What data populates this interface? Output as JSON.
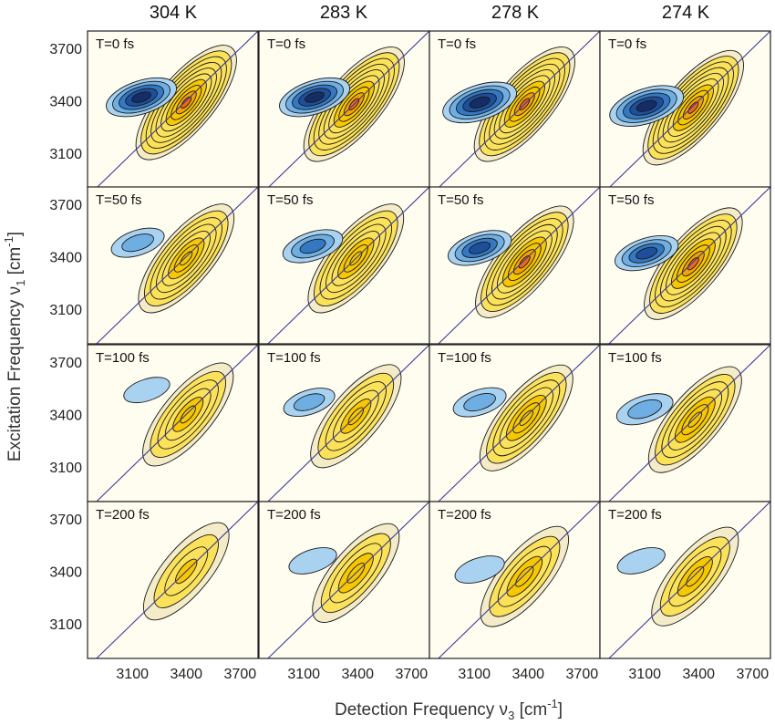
{
  "chart_data": {
    "type": "heatmap",
    "title": "",
    "xlabel": "Detection Frequency ν₃ [cm⁻¹]",
    "xlabel_main": "Detection Frequency ν",
    "xlabel_sub": "3",
    "xlabel_unit": " [cm",
    "xlabel_exp": "-1",
    "xlabel_end": "]",
    "ylabel": "Excitation Frequency ν₁ [cm⁻¹]",
    "ylabel_main": "Excitation Frequency ν",
    "ylabel_sub": "1",
    "ylabel_unit": " [cm",
    "ylabel_exp": "-1",
    "ylabel_end": "]",
    "columns": [
      "304 K",
      "283 K",
      "278 K",
      "274 K"
    ],
    "rows": [
      "T=0 fs",
      "T=50 fs",
      "T=100 fs",
      "T=200 fs"
    ],
    "xlim": [
      2850,
      3800
    ],
    "ylim": [
      2900,
      3800
    ],
    "x_ticks": [
      3100,
      3400,
      3700
    ],
    "x_tick_labels": [
      "3100",
      "3400",
      "3700"
    ],
    "y_ticks": [
      3100,
      3400,
      3700
    ],
    "y_tick_labels": [
      "3100",
      "3400",
      "3700"
    ],
    "diagonal": "x = y",
    "peak_estimates": [
      [
        {
          "pos": [
            3400,
            3390
          ],
          "neg": [
            3150,
            3420
          ],
          "pos_amp": 1.0,
          "neg_amp": 0.8
        },
        {
          "pos": [
            3380,
            3380
          ],
          "neg": [
            3160,
            3420
          ],
          "pos_amp": 1.0,
          "neg_amp": 0.8
        },
        {
          "pos": [
            3380,
            3380
          ],
          "neg": [
            3130,
            3390
          ],
          "pos_amp": 1.0,
          "neg_amp": 0.9
        },
        {
          "pos": [
            3370,
            3360
          ],
          "neg": [
            3110,
            3370
          ],
          "pos_amp": 1.0,
          "neg_amp": 0.9
        }
      ],
      [
        {
          "pos": [
            3400,
            3390
          ],
          "neg": [
            3130,
            3480
          ],
          "pos_amp": 0.8,
          "neg_amp": 0.3
        },
        {
          "pos": [
            3390,
            3390
          ],
          "neg": [
            3150,
            3460
          ],
          "pos_amp": 0.8,
          "neg_amp": 0.5
        },
        {
          "pos": [
            3380,
            3370
          ],
          "neg": [
            3130,
            3450
          ],
          "pos_amp": 0.9,
          "neg_amp": 0.6
        },
        {
          "pos": [
            3370,
            3360
          ],
          "neg": [
            3110,
            3420
          ],
          "pos_amp": 0.9,
          "neg_amp": 0.6
        }
      ],
      [
        {
          "pos": [
            3410,
            3400
          ],
          "neg": [
            3180,
            3540
          ],
          "pos_amp": 0.6,
          "neg_amp": 0.1
        },
        {
          "pos": [
            3390,
            3390
          ],
          "neg": [
            3130,
            3470
          ],
          "pos_amp": 0.6,
          "neg_amp": 0.25
        },
        {
          "pos": [
            3390,
            3380
          ],
          "neg": [
            3130,
            3470
          ],
          "pos_amp": 0.7,
          "neg_amp": 0.3
        },
        {
          "pos": [
            3380,
            3370
          ],
          "neg": [
            3100,
            3430
          ],
          "pos_amp": 0.7,
          "neg_amp": 0.4
        }
      ],
      [
        {
          "pos": [
            3400,
            3400
          ],
          "neg": [
            3170,
            3530
          ],
          "pos_amp": 0.4,
          "neg_amp": 0.0
        },
        {
          "pos": [
            3390,
            3390
          ],
          "neg": [
            3150,
            3460
          ],
          "pos_amp": 0.45,
          "neg_amp": 0.15
        },
        {
          "pos": [
            3380,
            3370
          ],
          "neg": [
            3130,
            3410
          ],
          "pos_amp": 0.5,
          "neg_amp": 0.2
        },
        {
          "pos": [
            3380,
            3370
          ],
          "neg": [
            3080,
            3460
          ],
          "pos_amp": 0.45,
          "neg_amp": 0.15
        }
      ]
    ],
    "colors": {
      "background": "#fffdf0",
      "diagonal": "#3a3a9a",
      "frame": "#222222",
      "positive": [
        "#f4ecc8",
        "#fbe25a",
        "#f7c800",
        "#f5a300",
        "#ee6a1a",
        "#de2c1e"
      ],
      "negative": [
        "#a9d2f0",
        "#6eaee3",
        "#3578c2",
        "#1e4f9a",
        "#142d66"
      ]
    }
  }
}
